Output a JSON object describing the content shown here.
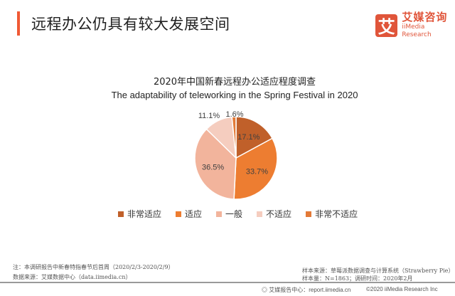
{
  "header": {
    "title": "远程办公仍具有较大发展空间",
    "logo": {
      "icon_char": "艾",
      "cn": "艾媒咨询",
      "en": "iiMedia Research"
    }
  },
  "chart": {
    "title_cn": "2020年中国新春远程办公适应程度调查",
    "title_en": "The adaptability of teleworking in the Spring Festival in 2020"
  },
  "legend": [
    {
      "label": "非常适应",
      "color": "#c0602a"
    },
    {
      "label": "适应",
      "color": "#ed7d31"
    },
    {
      "label": "一般",
      "color": "#f2b49c"
    },
    {
      "label": "不适应",
      "color": "#f5cdbf"
    },
    {
      "label": "非常不适应",
      "color": "#e37a37"
    }
  ],
  "notes": {
    "note": "注：本调研报告中新春特指春节后首周（2020/2/3-2020/2/9）",
    "source": "数据来源：艾媒数据中心（data.iimedia.cn）",
    "sample_source": "样本来源：草莓派数据调查与计算系统（Strawberry Pie）",
    "sample_size": "样本量：N=1863；调研时间：2020年2月"
  },
  "footer": {
    "report_center": "艾媒报告中心：report.iimedia.cn",
    "copyright": "©2020  iiMedia Research Inc"
  },
  "chart_data": {
    "type": "pie",
    "title": "2020年中国新春远程办公适应程度调查 / The adaptability of teleworking in the Spring Festival in 2020",
    "categories": [
      "非常适应",
      "适应",
      "一般",
      "不适应",
      "非常不适应"
    ],
    "values": [
      17.1,
      33.7,
      36.5,
      11.1,
      1.6
    ],
    "labels": [
      "17.1%",
      "33.7%",
      "36.5%",
      "11.1%",
      "1.6%"
    ],
    "colors": [
      "#c0602a",
      "#ed7d31",
      "#f2b49c",
      "#f5cdbf",
      "#e37a37"
    ],
    "legend_position": "bottom",
    "start_angle": "12 o'clock, clockwise"
  }
}
